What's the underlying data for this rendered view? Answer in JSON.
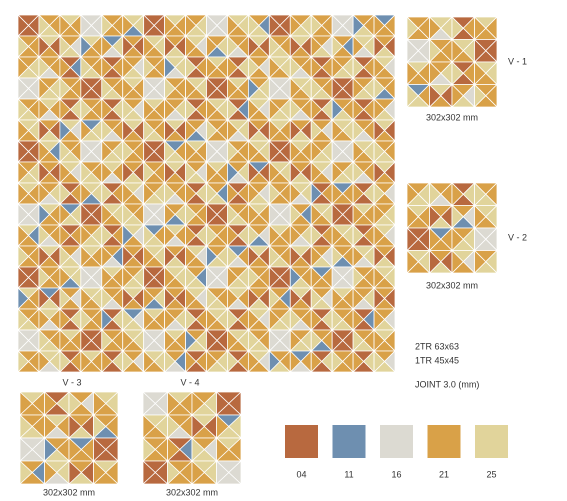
{
  "main": {
    "composition": [
      "2TR 63x63",
      "1TR 45x45"
    ],
    "joint": "JOINT 3.0 (mm)"
  },
  "variants": [
    {
      "label": "V - 1",
      "size": "302x302 mm"
    },
    {
      "label": "V - 2",
      "size": "302x302 mm"
    },
    {
      "label": "V - 3",
      "size": "302x302 mm"
    },
    {
      "label": "V - 4",
      "size": "302x302 mm"
    }
  ],
  "swatches": [
    {
      "code": "04",
      "color": "#b8693f"
    },
    {
      "code": "11",
      "color": "#6e8fb0"
    },
    {
      "code": "16",
      "color": "#dcdad2"
    },
    {
      "code": "21",
      "color": "#d9a148"
    },
    {
      "code": "25",
      "color": "#e1d49b"
    }
  ]
}
